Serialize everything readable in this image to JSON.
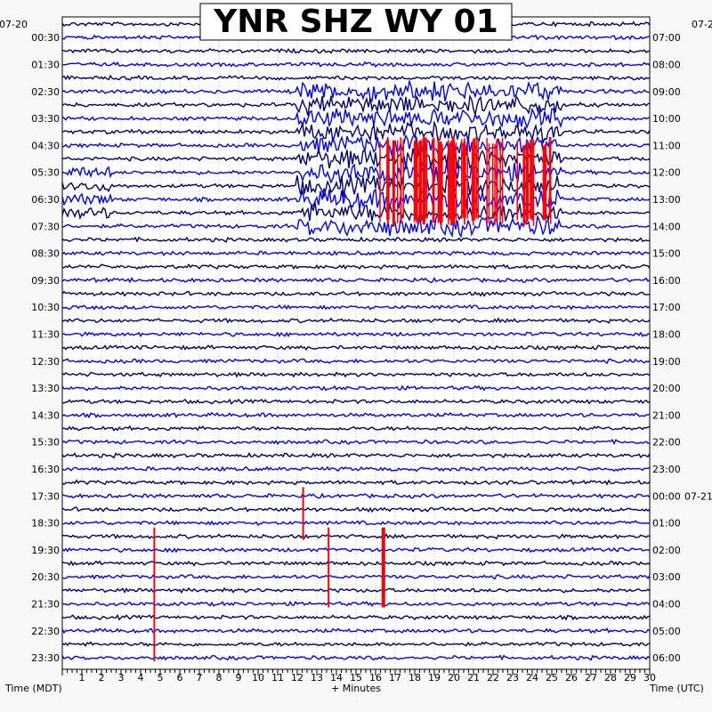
{
  "chart_data": {
    "type": "helicorder",
    "title": "YNR SHZ WY 01",
    "left_axis_label": "Time (MDT)",
    "bottom_axis_label": "+ Minutes",
    "right_axis_label": "Time (UTC)",
    "left_date": "07-20",
    "right_date_start": "07-2",
    "right_date_change": "07-21",
    "x_ticks": [
      "1",
      "2",
      "3",
      "4",
      "5",
      "6",
      "7",
      "8",
      "9",
      "10",
      "11",
      "12",
      "13",
      "14",
      "15",
      "16",
      "17",
      "18",
      "19",
      "20",
      "21",
      "22",
      "23",
      "24",
      "25",
      "26",
      "27",
      "28",
      "29",
      "30"
    ],
    "xlim": [
      0,
      30
    ],
    "left_time_labels": [
      "00:30",
      "01:30",
      "02:30",
      "03:30",
      "04:30",
      "05:30",
      "06:30",
      "07:30",
      "08:30",
      "09:30",
      "10:30",
      "11:30",
      "12:30",
      "13:30",
      "14:30",
      "15:30",
      "16:30",
      "17:30",
      "18:30",
      "19:30",
      "20:30",
      "21:30",
      "22:30",
      "23:30"
    ],
    "right_time_labels": [
      "07:00",
      "08:00",
      "09:00",
      "10:00",
      "11:00",
      "12:00",
      "13:00",
      "14:00",
      "15:00",
      "16:00",
      "17:00",
      "18:00",
      "19:00",
      "20:00",
      "21:00",
      "22:00",
      "23:00",
      "00:00",
      "01:00",
      "02:00",
      "03:00",
      "04:00",
      "05:00",
      "06:00"
    ],
    "trace_count": 48,
    "minutes_per_trace": 30,
    "trace_colors": [
      "#000066",
      "#0000ff"
    ],
    "clipped_color": "#ff0000",
    "events": [
      {
        "trace_start": 5,
        "trace_end": 15,
        "minute_start": 12,
        "minute_end": 25.5,
        "type": "noise_burst",
        "clipped": true
      },
      {
        "trace_start": 11,
        "trace_end": 14,
        "minute_start": 0,
        "minute_end": 2.5,
        "type": "noise_burst",
        "clipped": false
      },
      {
        "trace_start": 35,
        "trace_end": 39,
        "minute": 12.3,
        "clipped": true
      },
      {
        "trace_start": 38,
        "trace_end": 48,
        "minute": 4.7,
        "clipped": true
      },
      {
        "trace_start": 38,
        "trace_end": 44,
        "minute": 13.6,
        "clipped": true
      },
      {
        "trace_start": 38,
        "trace_end": 44,
        "minute": 16.4,
        "clipped": true
      }
    ]
  }
}
